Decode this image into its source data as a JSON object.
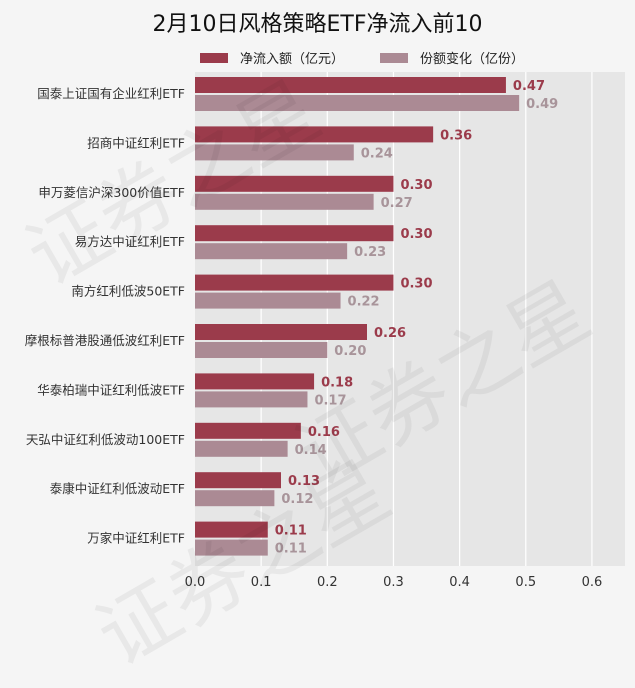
{
  "chart_data": {
    "type": "bar",
    "orientation": "horizontal",
    "title": "2月10日风格策略ETF净流入前10",
    "categories": [
      "国泰上证国有企业红利ETF",
      "招商中证红利ETF",
      "申万菱信沪深300价值ETF",
      "易方达中证红利ETF",
      "南方红利低波50ETF",
      "摩根标普港股通低波红利ETF",
      "华泰柏瑞中证红利低波ETF",
      "天弘中证红利低波动100ETF",
      "泰康中证红利低波动ETF",
      "万家中证红利ETF"
    ],
    "series": [
      {
        "name": "净流入额（亿元）",
        "color": "#9b3b4b",
        "label_color": "#9b3b4b",
        "values": [
          0.47,
          0.36,
          0.3,
          0.3,
          0.3,
          0.26,
          0.18,
          0.16,
          0.13,
          0.11
        ],
        "labels": [
          "0.47",
          "0.36",
          "0.30",
          "0.30",
          "0.30",
          "0.26",
          "0.18",
          "0.16",
          "0.13",
          "0.11"
        ]
      },
      {
        "name": "份额变化（亿份）",
        "color": "#ab8a94",
        "label_color": "#a8949a",
        "values": [
          0.49,
          0.24,
          0.27,
          0.23,
          0.22,
          0.2,
          0.17,
          0.14,
          0.12,
          0.11
        ],
        "labels": [
          "0.49",
          "0.24",
          "0.27",
          "0.23",
          "0.22",
          "0.20",
          "0.17",
          "0.14",
          "0.12",
          "0.11"
        ]
      }
    ],
    "xlim": [
      0,
      0.65
    ],
    "xticks": [
      "0.0",
      "0.1",
      "0.2",
      "0.3",
      "0.4",
      "0.5",
      "0.6"
    ],
    "xtick_values": [
      0,
      0.1,
      0.2,
      0.3,
      0.4,
      0.5,
      0.6
    ],
    "grid": true,
    "legend": "top",
    "xlabel": "",
    "ylabel": ""
  },
  "watermark": "证券之星"
}
